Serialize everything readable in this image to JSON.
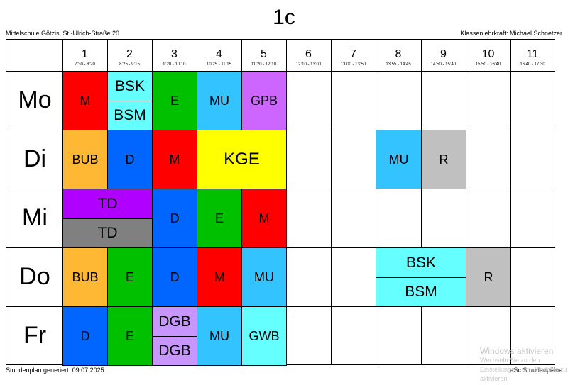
{
  "header": {
    "title": "1c",
    "school": "Mittelschule Götzis, St.-Ulrich-Straße 20",
    "teacher": "Klassenlehrkraft: Michael Schnetzer"
  },
  "periods": [
    {
      "num": "1",
      "time": "7:30 - 8:20"
    },
    {
      "num": "2",
      "time": "8:25 - 9:15"
    },
    {
      "num": "3",
      "time": "9:20 - 10:10"
    },
    {
      "num": "4",
      "time": "10:25 - 11:15"
    },
    {
      "num": "5",
      "time": "11:20 - 12:10"
    },
    {
      "num": "6",
      "time": "12:10 - 13:00"
    },
    {
      "num": "7",
      "time": "13:00 - 13:50"
    },
    {
      "num": "8",
      "time": "13:55 - 14:45"
    },
    {
      "num": "9",
      "time": "14:50 - 15:40"
    },
    {
      "num": "10",
      "time": "15:50 - 16:40"
    },
    {
      "num": "11",
      "time": "16:40 - 17:30"
    }
  ],
  "days": [
    "Mo",
    "Di",
    "Mi",
    "Do",
    "Fr"
  ],
  "colors": {
    "red": "#ff0000",
    "cyan": "#66ffff",
    "green": "#00c000",
    "skyblue": "#33c3ff",
    "violet": "#cc66ff",
    "orange": "#ffb833",
    "blue": "#0066ff",
    "yellow": "#ffff00",
    "gray": "#c0c0c0",
    "purple": "#b000ff",
    "darkgray": "#808080",
    "lavender": "#c896ff"
  },
  "lessons": [
    {
      "day": 0,
      "period": 0,
      "span": 1,
      "half": "full",
      "subject": "M",
      "color": "red"
    },
    {
      "day": 0,
      "period": 1,
      "span": 1,
      "half": "top",
      "subject": "BSK",
      "color": "cyan"
    },
    {
      "day": 0,
      "period": 1,
      "span": 1,
      "half": "bottom",
      "subject": "BSM",
      "color": "cyan"
    },
    {
      "day": 0,
      "period": 2,
      "span": 1,
      "half": "full",
      "subject": "E",
      "color": "green"
    },
    {
      "day": 0,
      "period": 3,
      "span": 1,
      "half": "full",
      "subject": "MU",
      "color": "skyblue"
    },
    {
      "day": 0,
      "period": 4,
      "span": 1,
      "half": "full",
      "subject": "GPB",
      "color": "violet"
    },
    {
      "day": 1,
      "period": 0,
      "span": 1,
      "half": "full",
      "subject": "BUB",
      "color": "orange"
    },
    {
      "day": 1,
      "period": 1,
      "span": 1,
      "half": "full",
      "subject": "D",
      "color": "blue"
    },
    {
      "day": 1,
      "period": 2,
      "span": 1,
      "half": "full",
      "subject": "M",
      "color": "red"
    },
    {
      "day": 1,
      "period": 3,
      "span": 2,
      "half": "full",
      "subject": "KGE",
      "color": "yellow"
    },
    {
      "day": 1,
      "period": 7,
      "span": 1,
      "half": "full",
      "subject": "MU",
      "color": "skyblue"
    },
    {
      "day": 1,
      "period": 8,
      "span": 1,
      "half": "full",
      "subject": "R",
      "color": "gray"
    },
    {
      "day": 2,
      "period": 0,
      "span": 2,
      "half": "top",
      "subject": "TD",
      "color": "purple"
    },
    {
      "day": 2,
      "period": 0,
      "span": 2,
      "half": "bottom",
      "subject": "TD",
      "color": "darkgray"
    },
    {
      "day": 2,
      "period": 2,
      "span": 1,
      "half": "full",
      "subject": "D",
      "color": "blue"
    },
    {
      "day": 2,
      "period": 3,
      "span": 1,
      "half": "full",
      "subject": "E",
      "color": "green"
    },
    {
      "day": 2,
      "period": 4,
      "span": 1,
      "half": "full",
      "subject": "M",
      "color": "red"
    },
    {
      "day": 3,
      "period": 0,
      "span": 1,
      "half": "full",
      "subject": "BUB",
      "color": "orange"
    },
    {
      "day": 3,
      "period": 1,
      "span": 1,
      "half": "full",
      "subject": "E",
      "color": "green"
    },
    {
      "day": 3,
      "period": 2,
      "span": 1,
      "half": "full",
      "subject": "D",
      "color": "blue"
    },
    {
      "day": 3,
      "period": 3,
      "span": 1,
      "half": "full",
      "subject": "M",
      "color": "red"
    },
    {
      "day": 3,
      "period": 4,
      "span": 1,
      "half": "full",
      "subject": "MU",
      "color": "skyblue"
    },
    {
      "day": 3,
      "period": 7,
      "span": 2,
      "half": "top",
      "subject": "BSK",
      "color": "cyan"
    },
    {
      "day": 3,
      "period": 7,
      "span": 2,
      "half": "bottom",
      "subject": "BSM",
      "color": "cyan"
    },
    {
      "day": 3,
      "period": 9,
      "span": 1,
      "half": "full",
      "subject": "R",
      "color": "gray"
    },
    {
      "day": 4,
      "period": 0,
      "span": 1,
      "half": "full",
      "subject": "D",
      "color": "blue"
    },
    {
      "day": 4,
      "period": 1,
      "span": 1,
      "half": "full",
      "subject": "E",
      "color": "green"
    },
    {
      "day": 4,
      "period": 2,
      "span": 1,
      "half": "top",
      "subject": "DGB",
      "color": "lavender"
    },
    {
      "day": 4,
      "period": 2,
      "span": 1,
      "half": "bottom",
      "subject": "DGB",
      "color": "lavender"
    },
    {
      "day": 4,
      "period": 3,
      "span": 1,
      "half": "full",
      "subject": "MU",
      "color": "skyblue"
    },
    {
      "day": 4,
      "period": 4,
      "span": 1,
      "half": "full",
      "subject": "GWB",
      "color": "cyan"
    }
  ],
  "footer": {
    "generated": "Stundenplan generiert: 09.07.2025",
    "brand": "aSc Stundenpläne"
  },
  "watermark": {
    "line1": "Windows aktivieren",
    "line2": "Wechseln Sie zu den Einstellungen, um Windows zu",
    "line3": "aktivieren."
  }
}
